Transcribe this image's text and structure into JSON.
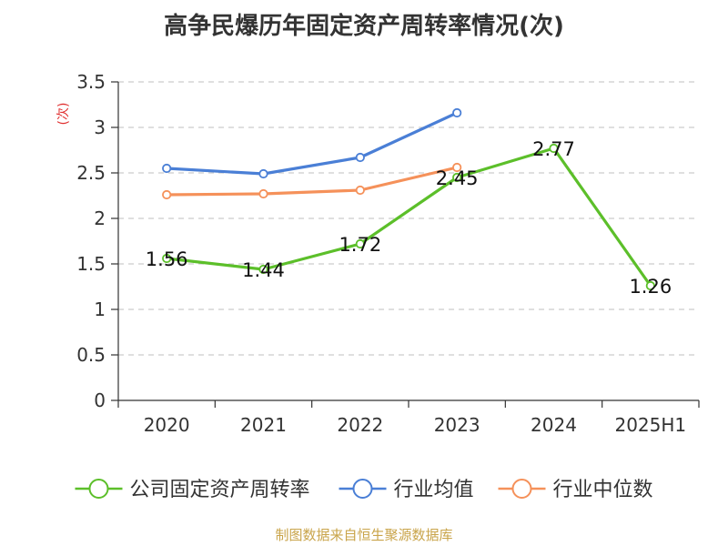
{
  "title": "高争民爆历年固定资产周转率情况(次)",
  "source": "制图数据来自恒生聚源数据库",
  "chart_data": {
    "type": "line",
    "categories": [
      "2020",
      "2021",
      "2022",
      "2023",
      "2024",
      "2025H1"
    ],
    "ylabel": "(次)",
    "ylim": [
      0,
      3.5
    ],
    "yticks": [
      "0",
      "0.5",
      "1",
      "1.5",
      "2",
      "2.5",
      "3",
      "3.5"
    ],
    "grid": true,
    "legend_position": "bottom",
    "series": [
      {
        "name": "公司固定资产周转率",
        "color": "#5cbf2a",
        "values": [
          1.56,
          1.44,
          1.72,
          2.45,
          2.77,
          1.26
        ],
        "labels": [
          "1.56",
          "1.44",
          "1.72",
          "2.45",
          "2.77",
          "1.26"
        ]
      },
      {
        "name": "行业均值",
        "color": "#4a7fd6",
        "values": [
          2.55,
          2.49,
          2.67,
          3.16,
          null,
          null
        ]
      },
      {
        "name": "行业中位数",
        "color": "#f5915a",
        "values": [
          2.26,
          2.27,
          2.31,
          2.56,
          null,
          null
        ]
      }
    ]
  }
}
